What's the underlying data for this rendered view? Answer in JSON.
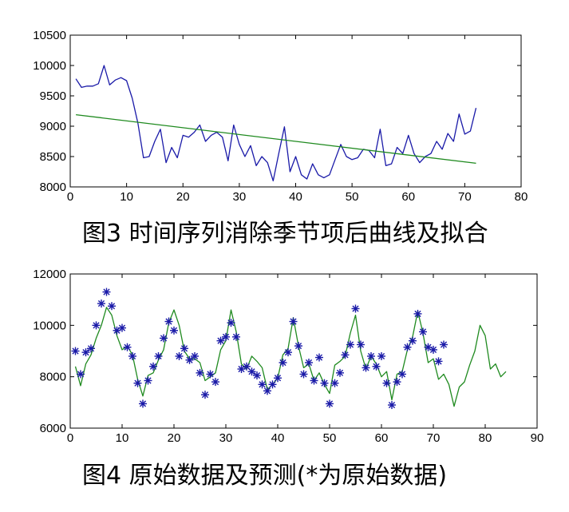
{
  "chart_data": [
    {
      "type": "line",
      "title": "图3 时间序列消除季节项后曲线及拟合",
      "xlim": [
        0,
        80
      ],
      "ylim": [
        8000,
        10500
      ],
      "xticks": [
        0,
        10,
        20,
        30,
        40,
        50,
        60,
        70,
        80
      ],
      "yticks": [
        8000,
        8500,
        9000,
        9500,
        10000,
        10500
      ],
      "grid": false,
      "series": [
        {
          "color": "#1a1aa8",
          "x": [
            1,
            2,
            3,
            4,
            5,
            6,
            7,
            8,
            9,
            10,
            11,
            12,
            13,
            14,
            15,
            16,
            17,
            18,
            19,
            20,
            21,
            22,
            23,
            24,
            25,
            26,
            27,
            28,
            29,
            30,
            31,
            32,
            33,
            34,
            35,
            36,
            37,
            38,
            39,
            40,
            41,
            42,
            43,
            44,
            45,
            46,
            47,
            48,
            49,
            50,
            51,
            52,
            53,
            54,
            55,
            56,
            57,
            58,
            59,
            60,
            61,
            62,
            63,
            64,
            65,
            66,
            67,
            68,
            69,
            70,
            71,
            72
          ],
          "y": [
            9780,
            9640,
            9660,
            9660,
            9700,
            10000,
            9680,
            9760,
            9800,
            9750,
            9460,
            9050,
            8480,
            8500,
            8750,
            8950,
            8400,
            8650,
            8480,
            8850,
            8820,
            8900,
            9020,
            8750,
            8850,
            8900,
            8820,
            8430,
            9020,
            8700,
            8500,
            8680,
            8350,
            8500,
            8400,
            8100,
            8550,
            8990,
            8250,
            8500,
            8200,
            8130,
            8380,
            8200,
            8150,
            8200,
            8450,
            8700,
            8500,
            8450,
            8480,
            8620,
            8600,
            8480,
            8950,
            8350,
            8380,
            8650,
            8550,
            8850,
            8550,
            8400,
            8500,
            8550,
            8750,
            8620,
            8880,
            8750,
            9200,
            8870,
            8920,
            9300
          ]
        },
        {
          "color": "#1f8a1f",
          "x": [
            1,
            72
          ],
          "y": [
            9190,
            8390
          ]
        }
      ]
    },
    {
      "type": "line",
      "title": "图4   原始数据及预测(*为原始数据)",
      "xlim": [
        0,
        90
      ],
      "ylim": [
        6000,
        12000
      ],
      "xticks": [
        0,
        10,
        20,
        30,
        40,
        50,
        60,
        70,
        80,
        90
      ],
      "yticks": [
        6000,
        8000,
        10000,
        12000
      ],
      "grid": false,
      "series": [
        {
          "color": "#1f8a1f",
          "x": [
            1,
            2,
            3,
            4,
            5,
            6,
            7,
            8,
            9,
            10,
            11,
            12,
            13,
            14,
            15,
            16,
            17,
            18,
            19,
            20,
            21,
            22,
            23,
            24,
            25,
            26,
            27,
            28,
            29,
            30,
            31,
            32,
            33,
            34,
            35,
            36,
            37,
            38,
            39,
            40,
            41,
            42,
            43,
            44,
            45,
            46,
            47,
            48,
            49,
            50,
            51,
            52,
            53,
            54,
            55,
            56,
            57,
            58,
            59,
            60,
            61,
            62,
            63,
            64,
            65,
            66,
            67,
            68,
            69,
            70,
            71,
            72,
            73,
            74,
            75,
            76,
            77,
            78,
            79,
            80,
            81,
            82,
            83,
            84
          ],
          "y": [
            8400,
            7650,
            8500,
            8850,
            9500,
            10000,
            10700,
            10400,
            9600,
            9050,
            9200,
            8850,
            7900,
            7250,
            8050,
            8150,
            8650,
            9050,
            10100,
            10600,
            10000,
            9000,
            8700,
            8700,
            8550,
            7850,
            8000,
            8150,
            9050,
            9400,
            10600,
            9750,
            8500,
            8300,
            8800,
            8600,
            8350,
            7500,
            7700,
            7950,
            8850,
            9100,
            10300,
            9200,
            8350,
            8500,
            7850,
            8150,
            7700,
            7350,
            8450,
            8600,
            8800,
            9700,
            10400,
            9000,
            8300,
            8800,
            8500,
            8000,
            8200,
            7100,
            8100,
            8200,
            9050,
            9550,
            10550,
            9700,
            8550,
            8700,
            7900,
            8100,
            7700,
            6850,
            7600,
            7800,
            8450,
            9000,
            10000,
            9600,
            8300,
            8500,
            8000,
            8200
          ]
        },
        {
          "color": "#1a1aa8",
          "marker": "*",
          "x": [
            1,
            2,
            3,
            4,
            5,
            6,
            7,
            8,
            9,
            10,
            11,
            12,
            13,
            14,
            15,
            16,
            17,
            18,
            19,
            20,
            21,
            22,
            23,
            24,
            25,
            26,
            27,
            28,
            29,
            30,
            31,
            32,
            33,
            34,
            35,
            36,
            37,
            38,
            39,
            40,
            41,
            42,
            43,
            44,
            45,
            46,
            47,
            48,
            49,
            50,
            51,
            52,
            53,
            54,
            55,
            56,
            57,
            58,
            59,
            60,
            61,
            62,
            63,
            64,
            65,
            66,
            67,
            68,
            69,
            70,
            71,
            72
          ],
          "y": [
            9000,
            8100,
            8950,
            9100,
            10000,
            10850,
            11300,
            10750,
            9800,
            9900,
            9150,
            8800,
            7750,
            6950,
            7850,
            8400,
            8800,
            9500,
            10150,
            9800,
            8800,
            9100,
            8650,
            8800,
            8150,
            7300,
            8100,
            7800,
            9400,
            9550,
            10100,
            9550,
            8300,
            8400,
            8200,
            8050,
            7700,
            7450,
            7700,
            7950,
            8550,
            8950,
            10150,
            9200,
            8100,
            8550,
            7850,
            8750,
            7750,
            6950,
            7750,
            8150,
            8850,
            9250,
            10650,
            9250,
            8350,
            8800,
            8400,
            8800,
            7750,
            6900,
            7800,
            8100,
            9150,
            9400,
            10450,
            9750,
            9150,
            9050,
            8600,
            9250
          ]
        }
      ]
    }
  ]
}
